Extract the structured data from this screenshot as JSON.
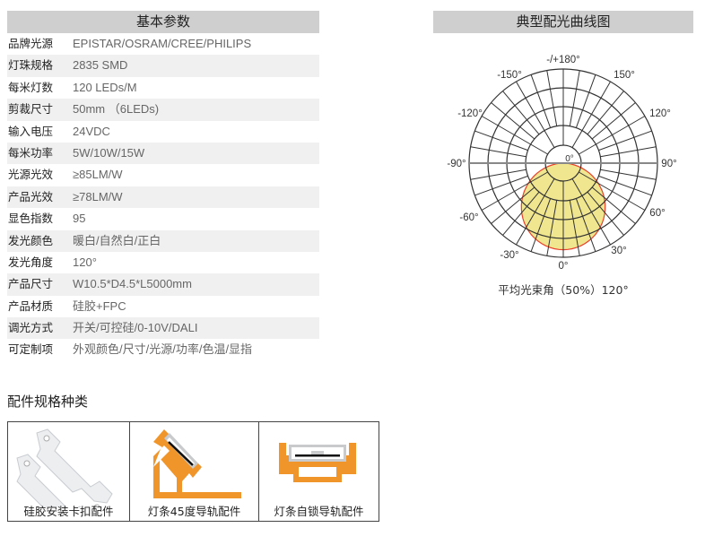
{
  "specs": {
    "title": "基本参数",
    "rows": [
      {
        "label": "品牌光源",
        "value": "EPISTAR/OSRAM/CREE/PHILIPS"
      },
      {
        "label": "灯珠规格",
        "value": "2835 SMD"
      },
      {
        "label": "每米灯数",
        "value": "120 LEDs/M"
      },
      {
        "label": "剪裁尺寸",
        "value": "50mm （6LEDs)"
      },
      {
        "label": "输入电压",
        "value": "24VDC"
      },
      {
        "label": "每米功率",
        "value": "5W/10W/15W"
      },
      {
        "label": "光源光效",
        "value": "≥85LM/W"
      },
      {
        "label": "产品光效",
        "value": "≥78LM/W"
      },
      {
        "label": "显色指数",
        "value": "95"
      },
      {
        "label": "发光颜色",
        "value": "暖白/自然白/正白"
      },
      {
        "label": "发光角度",
        "value": "120°"
      },
      {
        "label": "产品尺寸",
        "value": "W10.5*D4.5*L5000mm"
      },
      {
        "label": "产品材质",
        "value": "硅胶+FPC"
      },
      {
        "label": "调光方式",
        "value": "开关/可控硅/0-10V/DALI"
      },
      {
        "label": "可定制项",
        "value": "外观颜色/尺寸/光源/功率/色温/显指"
      }
    ]
  },
  "polar": {
    "title": "典型配光曲线图",
    "labels": {
      "top": "-/+180°",
      "m150": "-150°",
      "p150": "150°",
      "m120": "-120°",
      "p120": "120°",
      "m90": "-90°",
      "p90": "90°",
      "m60": "-60°",
      "p60": "60°",
      "m30": "-30°",
      "p30": "30°",
      "bottom": "0°",
      "center": "0°"
    },
    "beam_text": "平均光束角（50%）120°",
    "beam_angle_deg": 120,
    "fill_color": "#efe68f",
    "outline_color": "#e8402a"
  },
  "accessories": {
    "title": "配件规格种类",
    "items": [
      {
        "label": "硅胶安装卡扣配件"
      },
      {
        "label": "灯条45度导轨配件"
      },
      {
        "label": "灯条自锁导轨配件"
      }
    ],
    "rail_color": "#f0952a"
  }
}
